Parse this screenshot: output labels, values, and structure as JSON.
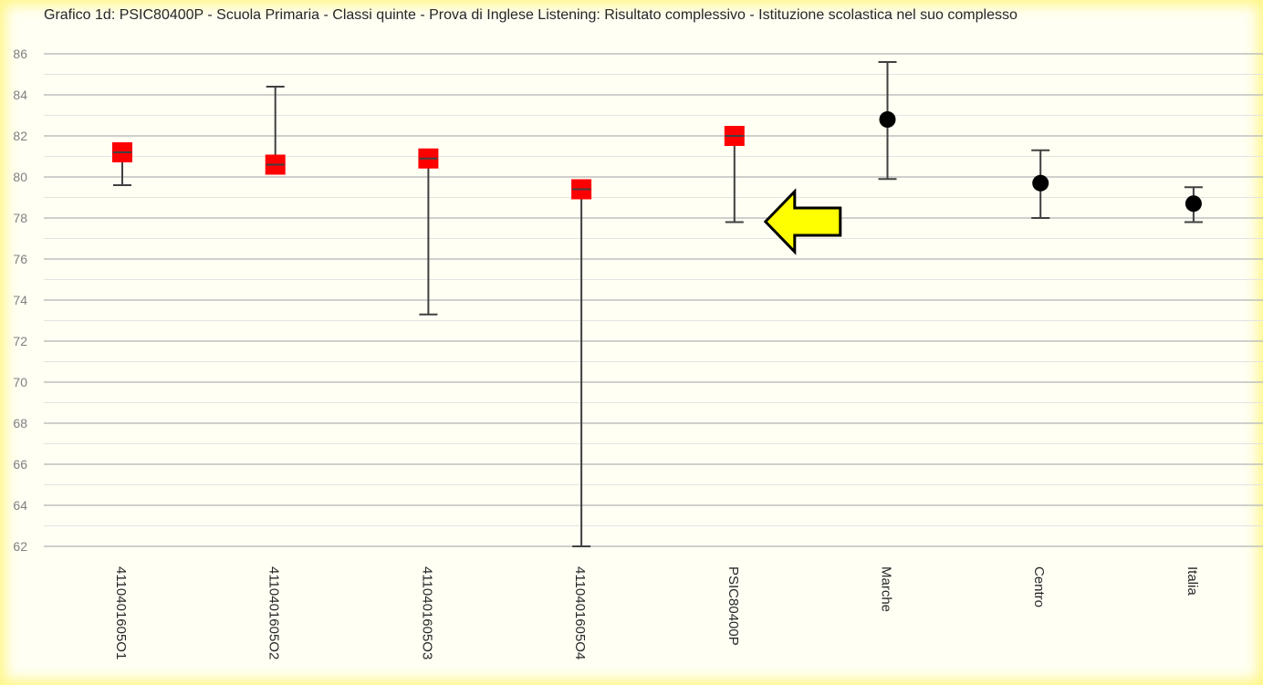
{
  "chart_data": {
    "type": "scatter",
    "title": "Grafico 1d: PSIC80400P - Scuola Primaria - Classi quinte - Prova di Inglese Listening: Risultato complessivo - Istituzione scolastica nel suo complesso",
    "xlabel": "",
    "ylabel": "",
    "ylim": [
      62,
      86
    ],
    "yticks": [
      62,
      64,
      66,
      68,
      70,
      72,
      74,
      76,
      78,
      80,
      82,
      84,
      86
    ],
    "grid": true,
    "categories": [
      "4110401605O1",
      "4110401605O2",
      "4110401605O3",
      "4110401605O4",
      "PSIC80400P",
      "Marche",
      "Centro",
      "Italia"
    ],
    "points": [
      {
        "category": "4110401605O1",
        "value": 81.2,
        "lower": 79.6,
        "upper": 81.2,
        "marker": "square",
        "color": "#ff0000"
      },
      {
        "category": "4110401605O2",
        "value": 80.6,
        "lower": 80.6,
        "upper": 84.4,
        "marker": "square",
        "color": "#ff0000"
      },
      {
        "category": "4110401605O3",
        "value": 80.9,
        "lower": 73.3,
        "upper": 80.9,
        "marker": "square",
        "color": "#ff0000"
      },
      {
        "category": "4110401605O4",
        "value": 79.4,
        "lower": 62.0,
        "upper": 79.4,
        "marker": "square",
        "color": "#ff0000"
      },
      {
        "category": "PSIC80400P",
        "value": 82.0,
        "lower": 77.8,
        "upper": 82.0,
        "marker": "square",
        "color": "#ff0000"
      },
      {
        "category": "Marche",
        "value": 82.8,
        "lower": 79.9,
        "upper": 85.6,
        "marker": "circle",
        "color": "#000000"
      },
      {
        "category": "Centro",
        "value": 79.7,
        "lower": 78.0,
        "upper": 81.3,
        "marker": "circle",
        "color": "#000000"
      },
      {
        "category": "Italia",
        "value": 78.7,
        "lower": 77.8,
        "upper": 79.5,
        "marker": "circle",
        "color": "#000000"
      }
    ],
    "highlight": {
      "category": "PSIC80400P",
      "icon": "arrow-left-icon",
      "color": "#ffff00"
    }
  }
}
